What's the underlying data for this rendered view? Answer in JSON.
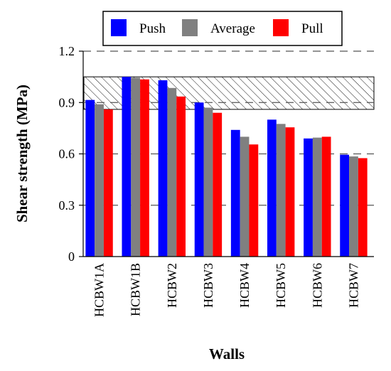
{
  "chart_data": {
    "type": "bar",
    "xlabel": "Walls",
    "ylabel": "Shear strength (MPa)",
    "ylim": [
      0,
      1.2
    ],
    "yticks": [
      "0",
      "0.3",
      "0.6",
      "0.9",
      "1.2"
    ],
    "ytick_values": [
      0,
      0.3,
      0.6,
      0.9,
      1.2
    ],
    "grid": "horizontal dashed at 0.3, 0.6, 0.9, 1.2",
    "legend_position": "top-center",
    "hatched_band": {
      "from": 0.86,
      "to": 1.05
    },
    "categories": [
      "HCBW1A",
      "HCBW1B",
      "HCBW2",
      "HCBW3",
      "HCBW4",
      "HCBW5",
      "HCBW6",
      "HCBW7"
    ],
    "series": [
      {
        "name": "Push",
        "color": "#0000ff",
        "values": [
          0.915,
          1.05,
          1.03,
          0.9,
          0.74,
          0.8,
          0.69,
          0.595
        ]
      },
      {
        "name": "Average",
        "color": "#808080",
        "values": [
          0.89,
          1.045,
          0.985,
          0.87,
          0.7,
          0.775,
          0.695,
          0.585
        ]
      },
      {
        "name": "Pull",
        "color": "#ff0000",
        "values": [
          0.86,
          1.035,
          0.935,
          0.84,
          0.655,
          0.755,
          0.7,
          0.575
        ]
      }
    ]
  }
}
